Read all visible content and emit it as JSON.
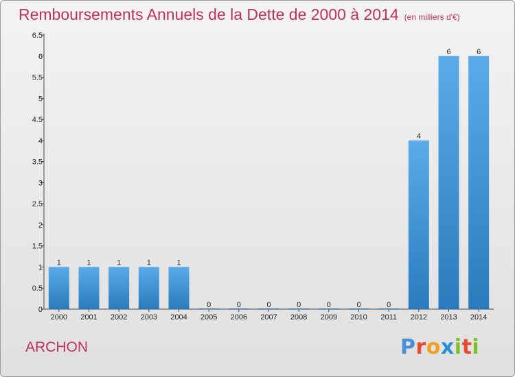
{
  "title": "Remboursements Annuels de la Dette de 2000 à 2014",
  "unit": "(en milliers d'€)",
  "commune": "ARCHON",
  "logo": {
    "text": "Proxiti",
    "letters": [
      {
        "ch": "P",
        "color": "#4a90d9"
      },
      {
        "ch": "r",
        "color": "#e84a2f"
      },
      {
        "ch": "o",
        "color": "#f0a020"
      },
      {
        "ch": "x",
        "color": "#2a8fd0"
      },
      {
        "ch": "i",
        "color": "#7cbf2a"
      },
      {
        "ch": "t",
        "color": "#e84a2f"
      },
      {
        "ch": "i",
        "color": "#7cbf2a"
      }
    ]
  },
  "colors": {
    "title": "#c03060",
    "bar_top": "#5aabe8",
    "bar_bottom": "#2a7bbd"
  },
  "chart_data": {
    "type": "bar",
    "categories": [
      "2000",
      "2001",
      "2002",
      "2003",
      "2004",
      "2005",
      "2006",
      "2007",
      "2008",
      "2009",
      "2010",
      "2011",
      "2012",
      "2013",
      "2014"
    ],
    "values": [
      1,
      1,
      1,
      1,
      1,
      0,
      0,
      0,
      0,
      0,
      0,
      0,
      4,
      6,
      6
    ],
    "data_labels": [
      "1",
      "1",
      "1",
      "1",
      "1",
      "0",
      "0",
      "0",
      "0",
      "0",
      "0",
      "0",
      "4",
      "6",
      "6"
    ],
    "yticks": [
      "0",
      "0.5",
      "1",
      "1.5",
      "2",
      "2.5",
      "3",
      "3.5",
      "4",
      "4.5",
      "5",
      "5.5",
      "6",
      "6.5"
    ],
    "ylim": [
      0,
      6.5
    ],
    "grid": false
  }
}
